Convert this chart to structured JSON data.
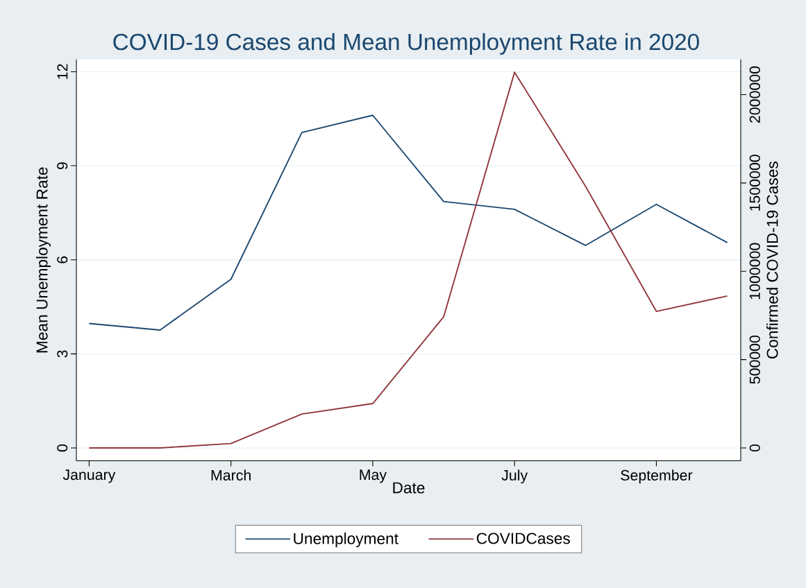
{
  "chart_data": {
    "type": "line",
    "title": "COVID-19 Cases and Mean Unemployment Rate in 2020",
    "xlabel": "Date",
    "ylabel": "Mean Unemployment Rate",
    "y2label": "Confirmed COVID-19 Cases",
    "categories": [
      "January",
      null,
      "March",
      null,
      "May",
      null,
      "July",
      null,
      "September",
      null
    ],
    "series": [
      {
        "name": "Unemployment",
        "color": "#1a476f",
        "values": [
          3.97,
          3.76,
          5.38,
          10.06,
          10.61,
          7.86,
          7.61,
          6.46,
          7.77,
          6.55
        ]
      },
      {
        "name": "COVIDCases",
        "color": "#90353b",
        "axis": "y2",
        "values": [
          0,
          0,
          25000,
          192000,
          251000,
          742000,
          2127000,
          1482000,
          773000,
          860000
        ]
      }
    ],
    "ylim": [
      -0.41,
      12.39
    ],
    "yticks": [
      0,
      3,
      6,
      9,
      12
    ],
    "y2lim": [
      -73000,
      2199000
    ],
    "y2ticks": [
      0,
      500000,
      1000000,
      1500000,
      2000000
    ],
    "grid": "y",
    "legend": "bottom"
  }
}
